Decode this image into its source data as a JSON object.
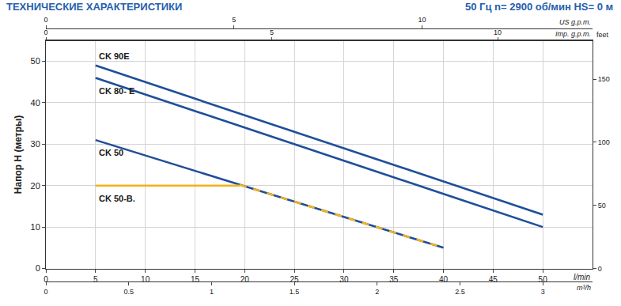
{
  "chart_data": {
    "type": "line",
    "title": "ТЕХНИЧЕСКИЕ ХАРАКТЕРИСТИКИ",
    "subtitle": "50 Гц n= 2900 об/мин HS= 0 м",
    "xlabel": "l/min",
    "ylabel": "Напор H (метры)",
    "xlim": [
      0,
      55
    ],
    "xticks": [
      0,
      5,
      10,
      15,
      20,
      25,
      30,
      35,
      40,
      45,
      50
    ],
    "ylim": [
      0,
      55
    ],
    "yticks": [
      0,
      10,
      20,
      30,
      40,
      50
    ],
    "y2label": "feet",
    "y2lim": [
      0,
      180.45
    ],
    "y2ticks": [
      0,
      50,
      100,
      150
    ],
    "secondary_x_axes": [
      {
        "label": "m³/h",
        "lim": [
          0,
          3.3
        ],
        "ticks": [
          0,
          0.5,
          1,
          1.5,
          2,
          2.5,
          3
        ]
      },
      {
        "label": "US g.p.m.",
        "lim": [
          0,
          14.53
        ],
        "ticks": [
          0,
          5,
          10
        ]
      },
      {
        "label": "Imp. g.p.m.",
        "lim": [
          0,
          12.1
        ],
        "ticks": [
          0,
          5,
          10
        ]
      }
    ],
    "grid": true,
    "series": [
      {
        "name": "CK 90E",
        "color": "#1f4e9a",
        "x": [
          5,
          50
        ],
        "values": [
          49,
          13
        ]
      },
      {
        "name": "CK 80- E",
        "color": "#1f4e9a",
        "x": [
          5,
          50
        ],
        "values": [
          46,
          10
        ]
      },
      {
        "name": "CK 50",
        "color": "#1f4e9a",
        "x": [
          5,
          40
        ],
        "values": [
          31,
          5
        ]
      },
      {
        "name": "CK 50-B.",
        "color": "#f2b21e",
        "x": [
          5,
          19.5
        ],
        "values": [
          20,
          20
        ]
      },
      {
        "color": "#f2b21e",
        "line_style": "dash",
        "x": [
          19.5,
          40
        ],
        "values": [
          20.2,
          5
        ]
      }
    ]
  }
}
